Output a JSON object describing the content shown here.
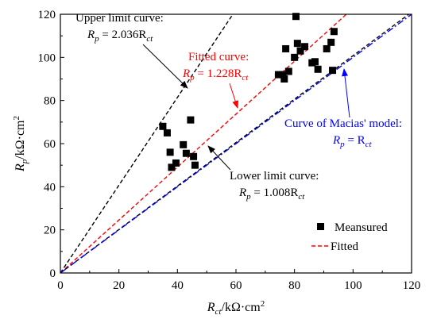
{
  "chart_data": {
    "type": "scatter",
    "xlabel": "R_ct/kΩ·cm²",
    "ylabel": "R_p/kΩ·cm²",
    "xlim": [
      0,
      120
    ],
    "ylim": [
      0,
      120
    ],
    "xticks": [
      "0",
      "20",
      "40",
      "60",
      "80",
      "100",
      "120"
    ],
    "yticks": [
      "0",
      "20",
      "40",
      "60",
      "80",
      "100",
      "120"
    ],
    "grid": false,
    "legend_position": "bottom-right",
    "series": [
      {
        "name": "Meansured",
        "kind": "scatter",
        "marker": "square",
        "color": "#000000",
        "points": [
          [
            35,
            68
          ],
          [
            36.5,
            65
          ],
          [
            37.5,
            56
          ],
          [
            38,
            49
          ],
          [
            39.5,
            51
          ],
          [
            42,
            59.5
          ],
          [
            43,
            55.5
          ],
          [
            44.5,
            71
          ],
          [
            45.5,
            54
          ],
          [
            46,
            50
          ],
          [
            74.5,
            92
          ],
          [
            76,
            92
          ],
          [
            76.5,
            90
          ],
          [
            77,
            104
          ],
          [
            78,
            93.5
          ],
          [
            80,
            100
          ],
          [
            80.5,
            119
          ],
          [
            81,
            106.5
          ],
          [
            82,
            103
          ],
          [
            83.5,
            105
          ],
          [
            86,
            97.5
          ],
          [
            87,
            98
          ],
          [
            88,
            94.5
          ],
          [
            91,
            104
          ],
          [
            92.5,
            107
          ],
          [
            93,
            94
          ],
          [
            93.5,
            112
          ]
        ]
      },
      {
        "name": "Fitted",
        "kind": "line",
        "slope": 1.228,
        "color": "#ff0000",
        "dash": "dashed"
      },
      {
        "kind": "line",
        "slope": 2.036,
        "color": "#000000",
        "dash": "dashed"
      },
      {
        "kind": "line",
        "slope": 1.008,
        "color": "#000000",
        "dash": "dashed"
      },
      {
        "kind": "line",
        "slope": 1.0,
        "color": "#0000ff",
        "dash": "dashdot"
      }
    ],
    "annotations": [
      {
        "id": "upper",
        "line1": "Upper limit curve:",
        "line2": "R_p = 2.036R_ct",
        "color": "#000000",
        "arrow_to": [
          34.5,
          70
        ]
      },
      {
        "id": "fitted",
        "line1": "Fitted curve:",
        "line2": "R_p = 1.228R_ct",
        "color": "#ff0000",
        "arrow_to": [
          60.5,
          74.5
        ]
      },
      {
        "id": "macias",
        "line1": "Curve of Macias' model:",
        "line2": "R_p = R_ct",
        "color": "#0000ff",
        "arrow_to": [
          97,
          97
        ]
      },
      {
        "id": "lower",
        "line1": "Lower limit curve:",
        "line2": "R_p = 1.008R_ct",
        "color": "#000000",
        "arrow_to": [
          59,
          59.5
        ]
      }
    ]
  },
  "axes": {
    "x_title_main": "R",
    "x_title_sub": "ct",
    "x_title_unit": "/kΩ·cm",
    "x_title_sup": "2",
    "y_title_main": "R",
    "y_title_sub": "p",
    "y_title_unit": "/kΩ·cm",
    "y_title_sup": "2"
  },
  "annotation_text": {
    "upper_title": "Upper limit curve:",
    "upper_eq_lhs": "R",
    "upper_eq_lhs_sub": "p",
    "upper_eq_rhs": " = 2.036R",
    "upper_eq_rhs_sub": "ct",
    "fitted_title": "Fitted curve:",
    "fitted_eq_lhs": "R",
    "fitted_eq_lhs_sub": "p",
    "fitted_eq_rhs": " = 1.228R",
    "fitted_eq_rhs_sub": "ct",
    "macias_title": "Curve of Macias' model:",
    "macias_eq_lhs": "R",
    "macias_eq_lhs_sub": "p",
    "macias_eq_rhs": " = R",
    "macias_eq_rhs_sub": "ct",
    "lower_title": "Lower limit curve:",
    "lower_eq_lhs": "R",
    "lower_eq_lhs_sub": "p",
    "lower_eq_rhs": " = 1.008R",
    "lower_eq_rhs_sub": "ct"
  },
  "legend": {
    "measured_label": "Meansured",
    "fitted_label": "Fitted"
  }
}
